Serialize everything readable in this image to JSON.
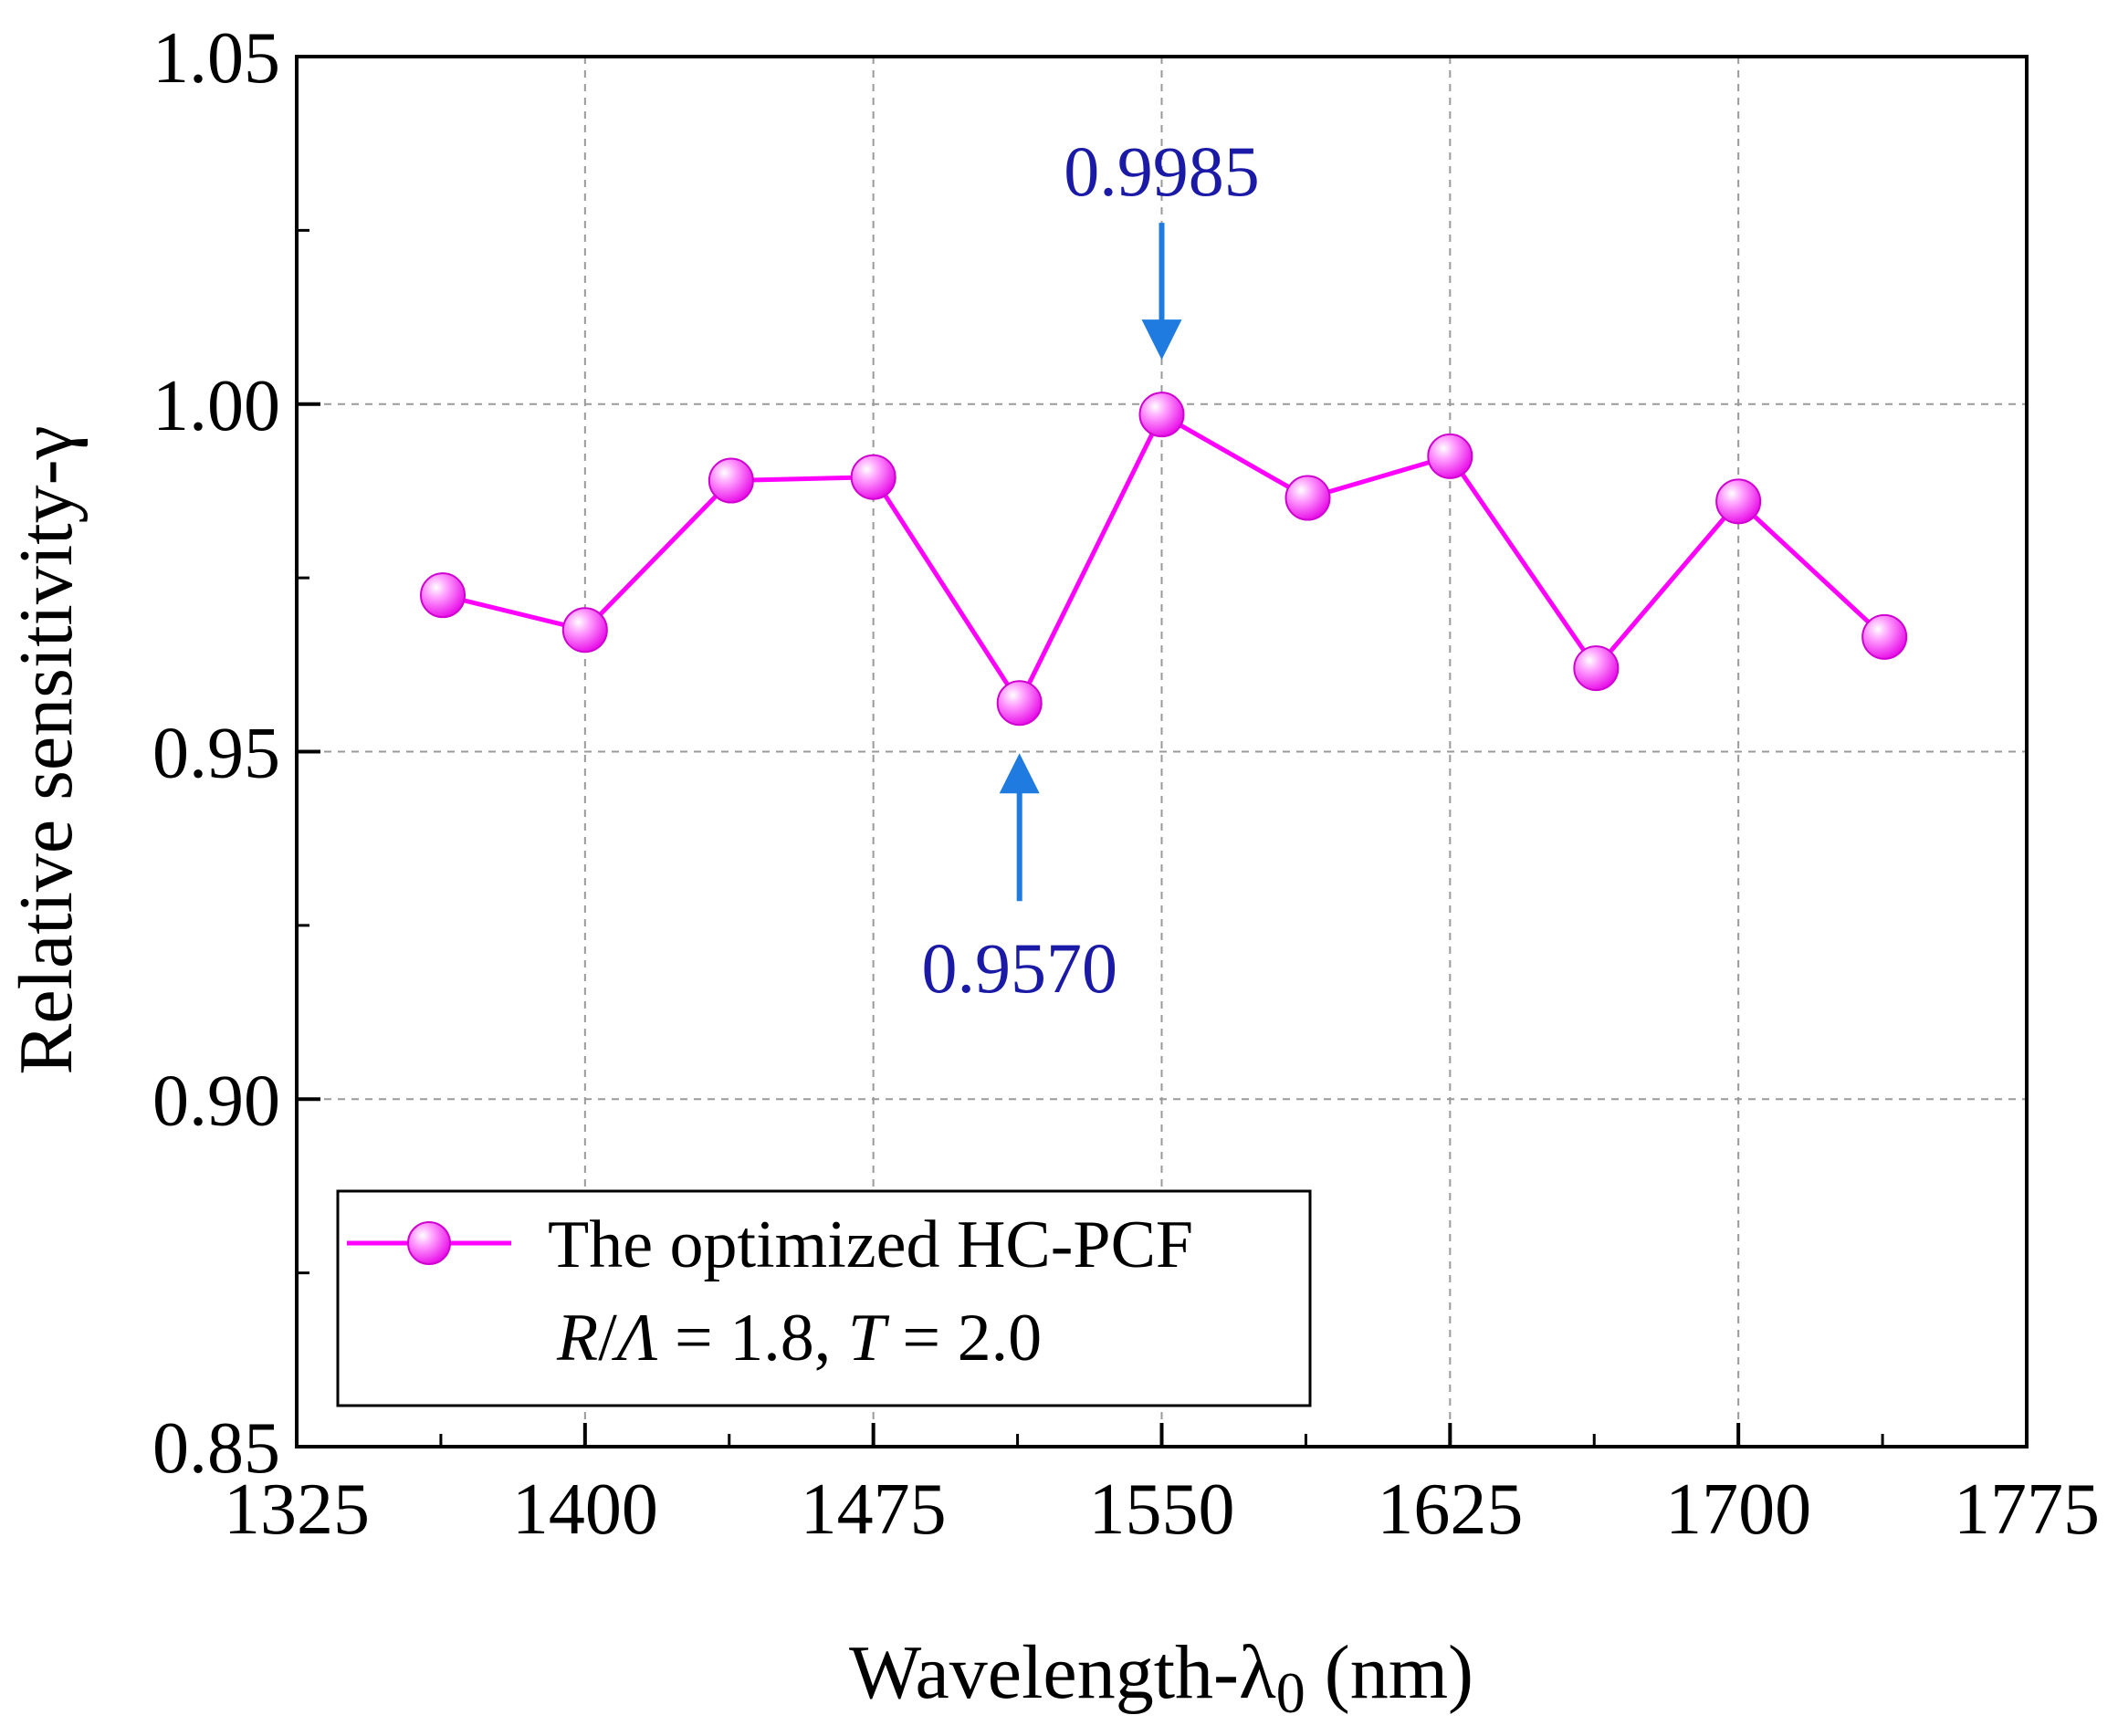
{
  "chart_data": {
    "type": "line",
    "title": "",
    "xlabel": "Wavelength-λ",
    "xlabel_sub": "0",
    "xlabel_unit": " (nm)",
    "ylabel": "Relative sensitivity-γ",
    "xlim": [
      1325,
      1775
    ],
    "ylim": [
      0.85,
      1.05
    ],
    "x_ticks": [
      1325,
      1400,
      1475,
      1550,
      1625,
      1700,
      1775
    ],
    "x_tick_labels": [
      "1325",
      "1400",
      "1475",
      "1550",
      "1625",
      "1700",
      "1775"
    ],
    "y_ticks": [
      0.85,
      0.9,
      0.95,
      1.0,
      1.05
    ],
    "y_tick_labels": [
      "0.85",
      "0.90",
      "0.95",
      "1.00",
      "1.05"
    ],
    "grid": true,
    "series": [
      {
        "name": "The optimized HC-PCF",
        "color": "#ff00ff",
        "x": [
          1363,
          1400,
          1438,
          1475,
          1513,
          1550,
          1588,
          1625,
          1663,
          1700,
          1738
        ],
        "values": [
          0.9725,
          0.9675,
          0.989,
          0.9895,
          0.957,
          0.9985,
          0.9865,
          0.9925,
          0.962,
          0.986,
          0.9665
        ]
      }
    ],
    "legend": {
      "position": "bottom-left",
      "entry": "The optimized HC-PCF",
      "params": {
        "R": "R",
        "Lambda": "Λ",
        "eq1": " = 1.8, ",
        "T": "T",
        "eq2": " = 2.0"
      }
    },
    "annotations": [
      {
        "text": "0.9985",
        "x": 1550,
        "y": 0.9985,
        "arrow": "down",
        "color": "#1a1aa6",
        "arrow_color": "#1f7be0"
      },
      {
        "text": "0.9570",
        "x": 1513,
        "y": 0.957,
        "arrow": "up",
        "color": "#1a1aa6",
        "arrow_color": "#1f7be0"
      }
    ]
  }
}
